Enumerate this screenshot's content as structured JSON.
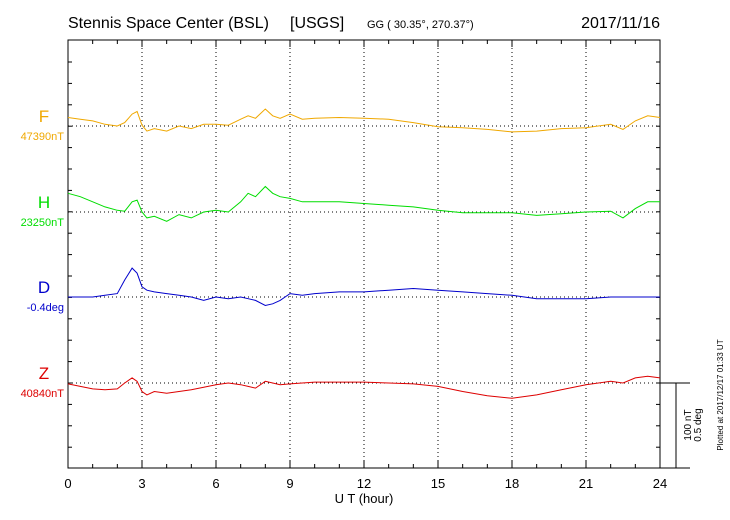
{
  "header": {
    "station": "Stennis Space Center (BSL)",
    "agency": "[USGS]",
    "coords": "GG ( 30.35°, 270.37°)",
    "date": "2017/11/16"
  },
  "footer": {
    "plotted_at": "Plotted at 2017/12/17 01:33 UT"
  },
  "colors": {
    "F": "#f0a800",
    "H": "#00dd00",
    "D": "#0000cc",
    "Z": "#dd0000"
  },
  "chart_data": {
    "type": "line",
    "xlabel": "U T (hour)",
    "xlim": [
      0,
      24
    ],
    "x_ticks": [
      "0",
      "3",
      "6",
      "9",
      "12",
      "15",
      "18",
      "21",
      "24"
    ],
    "grid": true,
    "scale_bar": {
      "nT": "100 nT",
      "deg": "0.5 deg"
    },
    "series": [
      {
        "name": "F",
        "baseline_label": "47390nT",
        "unit": "nT",
        "baseline": 47390,
        "x": [
          0,
          0.5,
          1,
          1.5,
          2,
          2.3,
          2.6,
          2.8,
          3.0,
          3.2,
          3.5,
          4,
          4.5,
          5,
          5.5,
          6,
          6.5,
          7,
          7.3,
          7.6,
          8,
          8.3,
          8.6,
          9,
          9.5,
          10,
          11,
          12,
          13,
          14,
          15,
          16,
          17,
          18,
          19,
          20,
          21,
          22,
          22.5,
          23,
          23.5,
          24
        ],
        "values": [
          47400,
          47398,
          47396,
          47392,
          47390,
          47394,
          47404,
          47407,
          47391,
          47384,
          47387,
          47384,
          47390,
          47387,
          47392,
          47392,
          47391,
          47398,
          47402,
          47399,
          47410,
          47402,
          47399,
          47404,
          47398,
          47399,
          47400,
          47399,
          47398,
          47394,
          47389,
          47388,
          47386,
          47383,
          47384,
          47387,
          47388,
          47392,
          47386,
          47396,
          47402,
          47400
        ]
      },
      {
        "name": "H",
        "baseline_label": "23250nT",
        "unit": "nT",
        "baseline": 23250,
        "x": [
          0,
          0.5,
          1,
          1.5,
          2,
          2.3,
          2.6,
          2.8,
          3.0,
          3.2,
          3.5,
          4,
          4.5,
          5,
          5.5,
          6,
          6.5,
          7,
          7.3,
          7.6,
          8,
          8.3,
          8.6,
          9,
          9.5,
          10,
          11,
          12,
          13,
          14,
          15,
          16,
          17,
          18,
          19,
          20,
          21,
          22,
          22.5,
          23,
          23.5,
          24
        ],
        "values": [
          23272,
          23268,
          23262,
          23256,
          23252,
          23251,
          23262,
          23264,
          23250,
          23243,
          23245,
          23239,
          23247,
          23243,
          23250,
          23252,
          23250,
          23262,
          23272,
          23268,
          23280,
          23272,
          23268,
          23266,
          23262,
          23262,
          23262,
          23260,
          23258,
          23256,
          23252,
          23249,
          23249,
          23249,
          23246,
          23248,
          23250,
          23251,
          23243,
          23254,
          23262,
          23262
        ]
      },
      {
        "name": "D",
        "baseline_label": "-0.4deg",
        "unit": "deg",
        "baseline": -0.4,
        "x": [
          0,
          0.5,
          1,
          1.5,
          2,
          2.3,
          2.6,
          2.8,
          3.0,
          3.2,
          3.5,
          4,
          4.5,
          5,
          5.5,
          6,
          6.5,
          7,
          7.3,
          7.6,
          8,
          8.3,
          8.6,
          9,
          9.5,
          10,
          11,
          12,
          13,
          14,
          15,
          16,
          17,
          18,
          19,
          20,
          21,
          22,
          22.5,
          23,
          23.5,
          24
        ],
        "values": [
          -0.4,
          -0.4,
          -0.4,
          -0.39,
          -0.38,
          -0.3,
          -0.23,
          -0.26,
          -0.34,
          -0.36,
          -0.37,
          -0.38,
          -0.39,
          -0.4,
          -0.42,
          -0.4,
          -0.41,
          -0.4,
          -0.41,
          -0.42,
          -0.45,
          -0.44,
          -0.42,
          -0.38,
          -0.39,
          -0.38,
          -0.37,
          -0.37,
          -0.36,
          -0.35,
          -0.36,
          -0.37,
          -0.38,
          -0.39,
          -0.41,
          -0.41,
          -0.41,
          -0.4,
          -0.4,
          -0.4,
          -0.4,
          -0.4
        ]
      },
      {
        "name": "Z",
        "baseline_label": "40840nT",
        "unit": "nT",
        "baseline": 40840,
        "x": [
          0,
          0.5,
          1,
          1.5,
          2,
          2.3,
          2.6,
          2.8,
          3.0,
          3.2,
          3.5,
          4,
          4.5,
          5,
          5.5,
          6,
          6.5,
          7,
          7.3,
          7.6,
          8,
          8.3,
          8.6,
          9,
          9.5,
          10,
          11,
          12,
          13,
          14,
          15,
          16,
          17,
          18,
          19,
          20,
          21,
          22,
          22.5,
          23,
          23.5,
          24
        ],
        "values": [
          40839,
          40836,
          40833,
          40832,
          40833,
          40840,
          40846,
          40842,
          40830,
          40826,
          40830,
          40828,
          40830,
          40832,
          40835,
          40838,
          40840,
          40838,
          40836,
          40834,
          40842,
          40840,
          40838,
          40839,
          40840,
          40841,
          40841,
          40841,
          40840,
          40839,
          40836,
          40830,
          40825,
          40822,
          40826,
          40832,
          40838,
          40842,
          40840,
          40846,
          40848,
          40846
        ]
      }
    ]
  }
}
